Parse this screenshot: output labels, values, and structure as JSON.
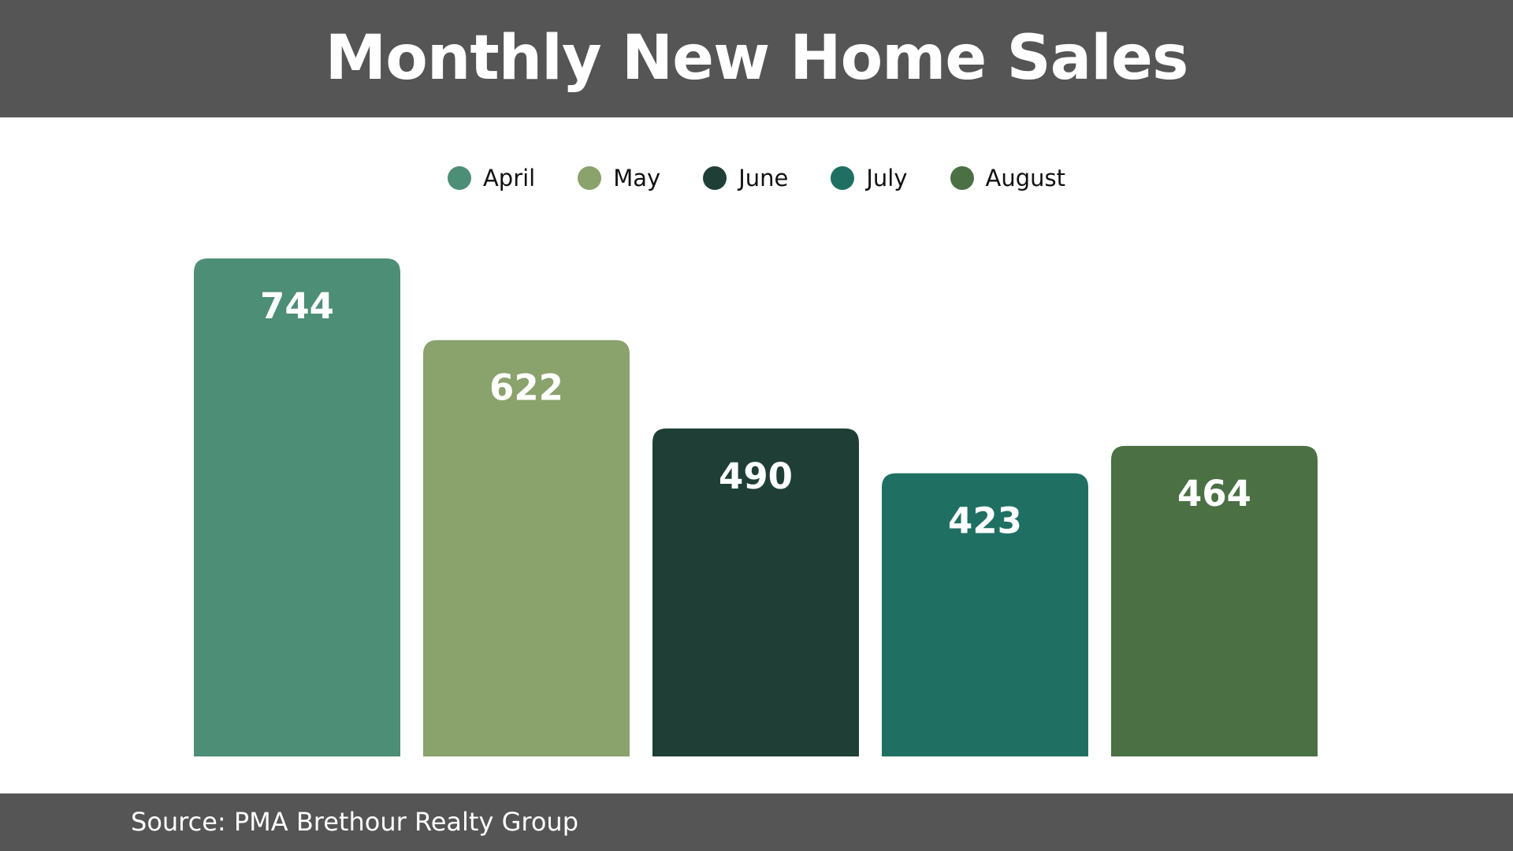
{
  "title": "Monthly New Home Sales",
  "source": "Source: PMA Brethour Realty Group",
  "colors": {
    "header_bg": "#555555",
    "footer_bg": "#555555"
  },
  "chart_data": {
    "type": "bar",
    "title": "Monthly New Home Sales",
    "categories": [
      "April",
      "May",
      "June",
      "July",
      "August"
    ],
    "values": [
      744,
      622,
      490,
      423,
      464
    ],
    "colors": [
      "#4d8e76",
      "#8aa26c",
      "#1f3f36",
      "#1f7063",
      "#4a7044"
    ],
    "legend": "top-center",
    "grid": false,
    "ylim": [
      0,
      744
    ],
    "data_labels": true
  }
}
